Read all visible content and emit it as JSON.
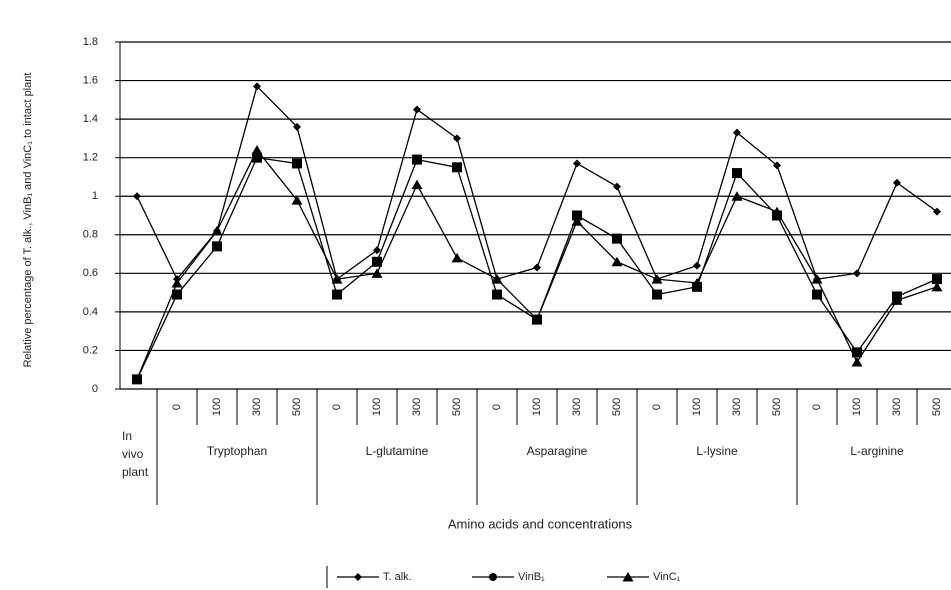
{
  "chart_data": {
    "type": "line",
    "y_label": "Relative percentage of T. alk., VinB₁ and VinC₁ to intact plant",
    "x_label": "Amino acids and concentrations",
    "groups": [
      "In vivo plant",
      "Tryptophan",
      "L-glutamine",
      "Asparagine",
      "L-lysine",
      "L-arginine"
    ],
    "categories": [
      null,
      "0",
      "100",
      "300",
      "500",
      "0",
      "100",
      "300",
      "500",
      "0",
      "100",
      "300",
      "500",
      "0",
      "100",
      "300",
      "500",
      "0",
      "100",
      "300",
      "500"
    ],
    "series": [
      {
        "name": "T. alk.",
        "color": "#000000",
        "marker": "diamond",
        "values": [
          1.0,
          0.57,
          0.82,
          1.57,
          1.36,
          0.57,
          0.72,
          1.45,
          1.3,
          0.57,
          0.63,
          1.17,
          1.05,
          0.57,
          0.64,
          1.33,
          1.16,
          0.57,
          0.6,
          1.07,
          0.92
        ]
      },
      {
        "name": "VinB₁",
        "color": "#000000",
        "marker": "square",
        "values": [
          0.05,
          0.49,
          0.74,
          1.2,
          1.17,
          0.49,
          0.66,
          1.19,
          1.15,
          0.49,
          0.36,
          0.9,
          0.78,
          0.49,
          0.53,
          1.12,
          0.9,
          0.49,
          0.19,
          0.48,
          0.57
        ]
      },
      {
        "name": "VinC₁",
        "color": "#000000",
        "marker": "triangle",
        "values": [
          0.05,
          0.55,
          0.82,
          1.24,
          0.98,
          0.57,
          0.6,
          1.06,
          0.68,
          0.57,
          0.36,
          0.87,
          0.66,
          0.57,
          0.55,
          1.0,
          0.92,
          0.57,
          0.14,
          0.46,
          0.53
        ]
      }
    ],
    "ylim": [
      0,
      1.8
    ],
    "yticks": [
      0,
      0.2,
      0.4,
      0.6,
      0.8,
      1,
      1.2,
      1.4,
      1.6,
      1.8
    ],
    "grid": true
  }
}
